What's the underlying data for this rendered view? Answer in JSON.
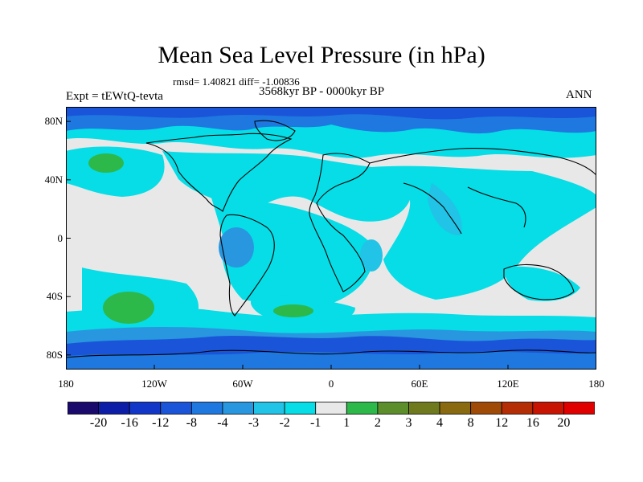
{
  "title": "Mean Sea Level Pressure (in hPa)",
  "stats": "rmsd= 1.40821 diff= -1.00836",
  "expt": "Expt = tEWtQ-tevta",
  "period": "3568kyr BP - 0000kyr BP",
  "season": "ANN",
  "lat_ticks": [
    {
      "label": "80N",
      "value": 80
    },
    {
      "label": "40N",
      "value": 40
    },
    {
      "label": "0",
      "value": 0
    },
    {
      "label": "40S",
      "value": -40
    },
    {
      "label": "80S",
      "value": -80
    }
  ],
  "lon_ticks": [
    {
      "label": "180",
      "value": -180
    },
    {
      "label": "120W",
      "value": -120
    },
    {
      "label": "60W",
      "value": -60
    },
    {
      "label": "0",
      "value": 0
    },
    {
      "label": "60E",
      "value": 60
    },
    {
      "label": "120E",
      "value": 120
    },
    {
      "label": "180",
      "value": 180
    }
  ],
  "colorbar": {
    "colors": [
      "#1a0a6b",
      "#0c1ea8",
      "#1237c8",
      "#1a55d9",
      "#1e78e0",
      "#2897e0",
      "#21c3e6",
      "#06dde6",
      "#e8e8e8",
      "#2db84a",
      "#5c8f2c",
      "#6f7a1e",
      "#8a6a10",
      "#a04a08",
      "#b52d04",
      "#c81402",
      "#e00000"
    ],
    "labels": [
      "-20",
      "-16",
      "-12",
      "-8",
      "-4",
      "-3",
      "-2",
      "-1",
      "1",
      "2",
      "3",
      "4",
      "8",
      "12",
      "16",
      "20"
    ]
  },
  "map_colors": {
    "near_zero": "#e8e8e8",
    "minus_one": "#06dde6",
    "minus_two": "#21c3e6",
    "minus_three": "#2897e0",
    "minus_four": "#1e78e0",
    "minus_eight": "#1a55d9",
    "plus_two": "#2db84a"
  }
}
